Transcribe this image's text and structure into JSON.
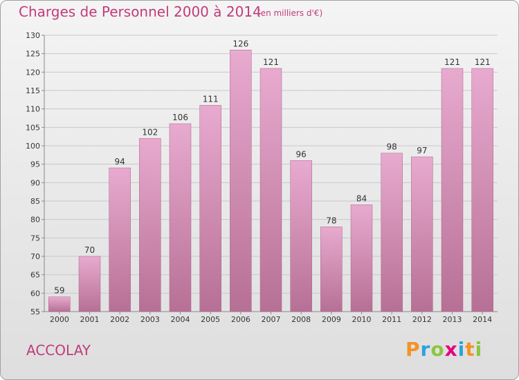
{
  "header": {
    "title": "Charges de Personnel 2000 à 2014",
    "subtitle": "(en milliers d'€)"
  },
  "footer": {
    "commune": "ACCOLAY",
    "logo_text": "Proxiti",
    "logo_colors": [
      "#f39325",
      "#2ba3dd",
      "#8cc63f",
      "#e5007e",
      "#2ba3dd",
      "#f39325",
      "#8cc63f"
    ]
  },
  "colors": {
    "title": "#c13b7b",
    "bar_top": "#e8aacf",
    "bar_bottom": "#b77095",
    "grid": "#c8c8c8",
    "axis_text": "#333333"
  },
  "chart_data": {
    "type": "bar",
    "categories": [
      "2000",
      "2001",
      "2002",
      "2003",
      "2004",
      "2005",
      "2006",
      "2007",
      "2008",
      "2009",
      "2010",
      "2011",
      "2012",
      "2013",
      "2014"
    ],
    "values": [
      59,
      70,
      94,
      102,
      106,
      111,
      126,
      121,
      96,
      78,
      84,
      98,
      97,
      121,
      121
    ],
    "ylim": [
      55,
      130
    ],
    "yticks": [
      55,
      60,
      65,
      70,
      75,
      80,
      85,
      90,
      95,
      100,
      105,
      110,
      115,
      120,
      125,
      130
    ],
    "grid": true,
    "data_labels": true
  }
}
